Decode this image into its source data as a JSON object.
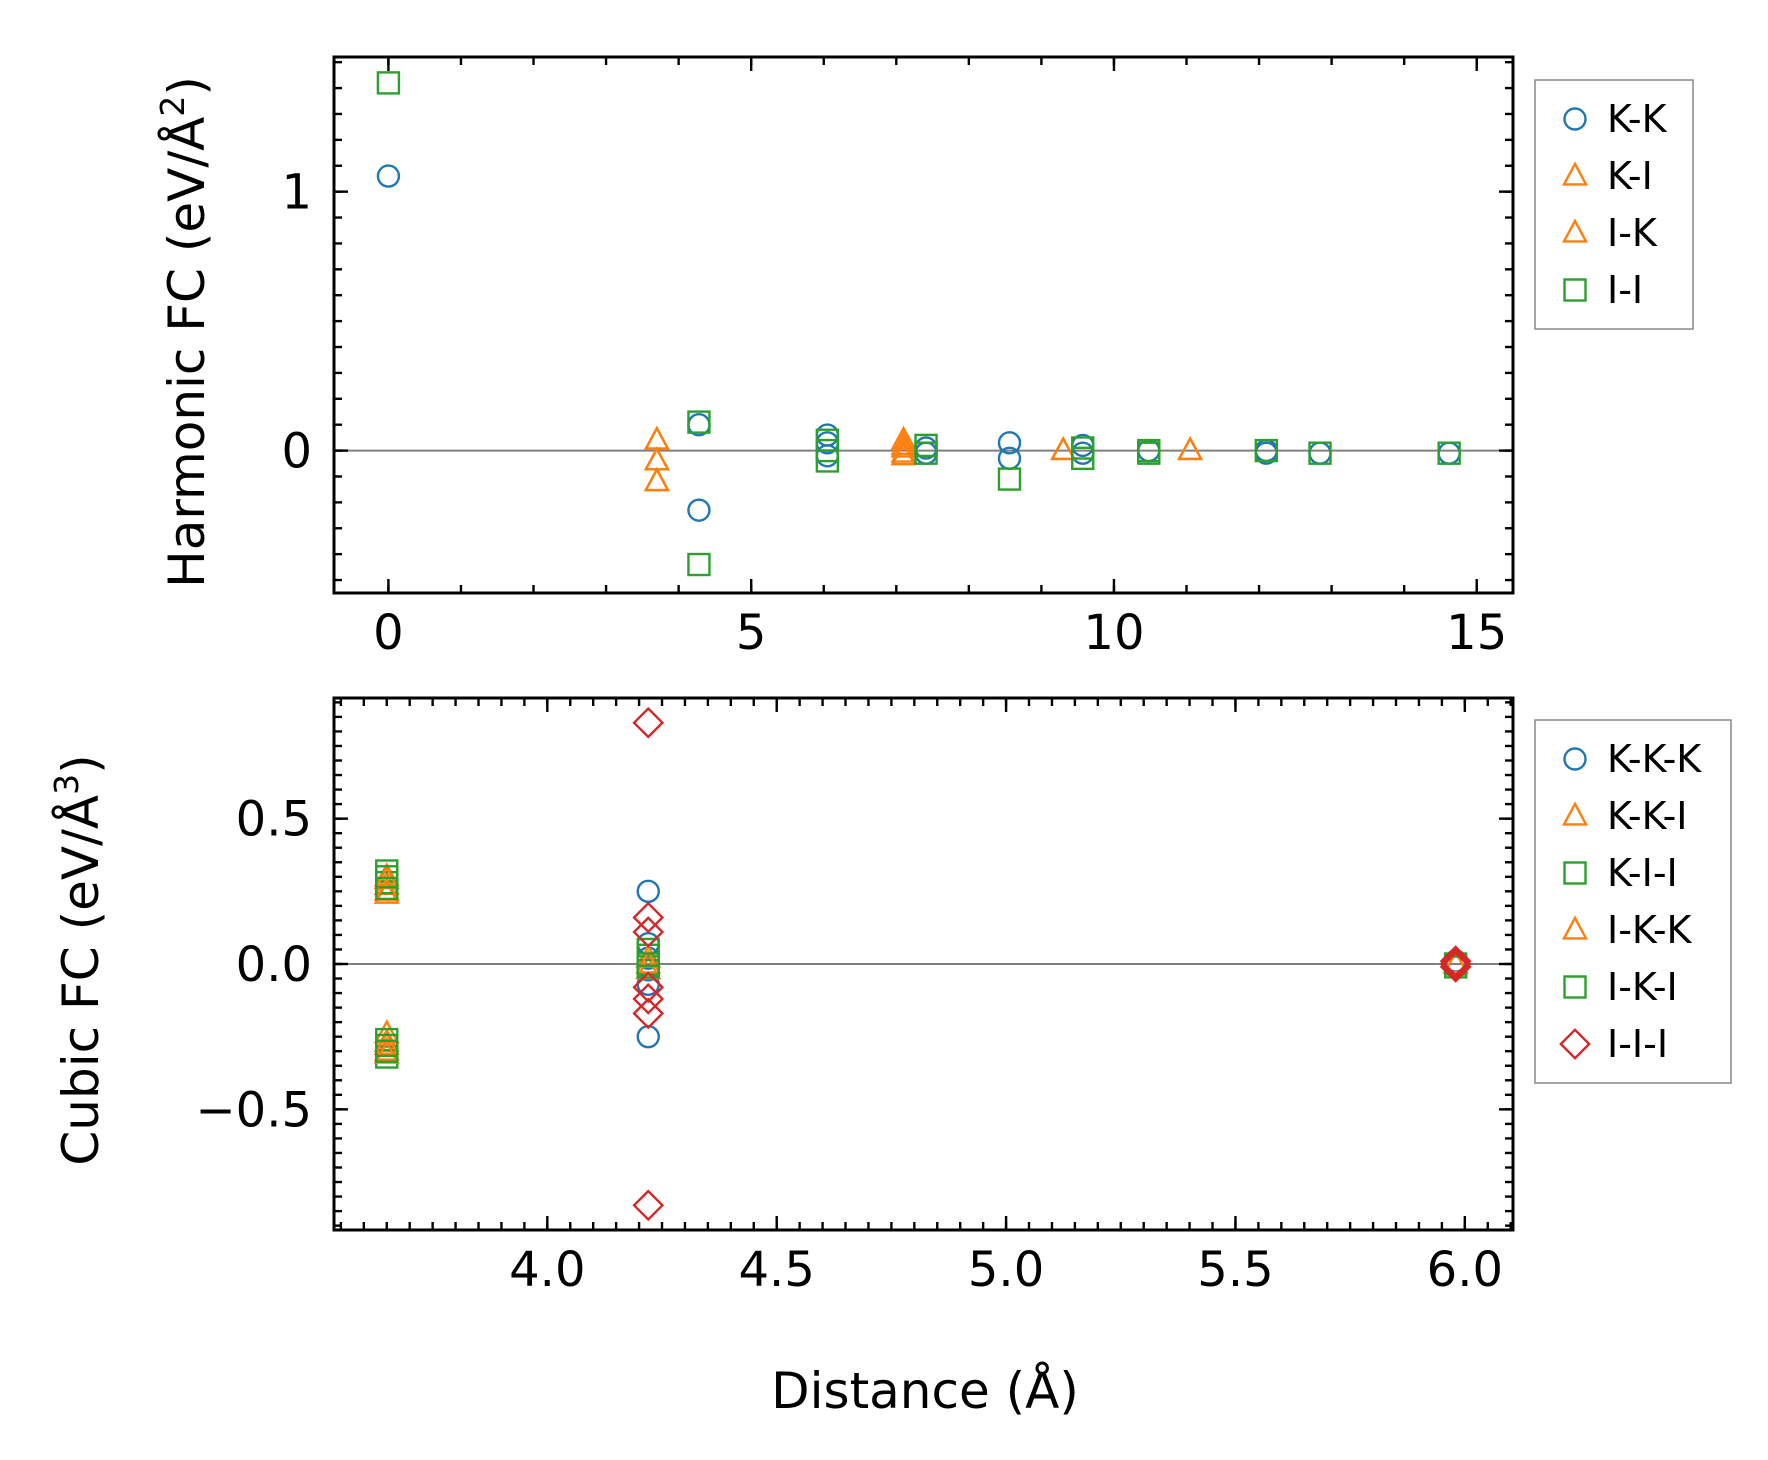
{
  "colors": {
    "blue": "#1f77b4",
    "orange": "#ff7f0e",
    "green": "#2ca02c",
    "red": "#d62728",
    "zero_line": "#808080"
  },
  "xlabel": "Distance (Å)",
  "chart_data": [
    {
      "type": "scatter",
      "title": "",
      "xlabel": "",
      "ylabel_main": "Harmonic FC (eV/Å",
      "ylabel_sup": "2",
      "ylabel_close": ")",
      "xlim": [
        -0.75,
        15.5
      ],
      "ylim": [
        -0.55,
        1.52
      ],
      "xticks": [
        0,
        5,
        10,
        15
      ],
      "xtick_labels": [
        "0",
        "5",
        "10",
        "15"
      ],
      "yticks": [
        0,
        1
      ],
      "ytick_labels": [
        "0",
        "1"
      ],
      "zero_line": true,
      "legend_loc": "upper right outside",
      "series": [
        {
          "name": "K-K",
          "marker": "circle",
          "color": "#1f77b4",
          "x": [
            0,
            4.28,
            4.28,
            6.05,
            6.05,
            6.05,
            7.41,
            7.41,
            8.56,
            8.56,
            9.57,
            9.57,
            10.48,
            12.1,
            12.1,
            12.84,
            14.62
          ],
          "y": [
            1.06,
            0.1,
            -0.23,
            0.06,
            0.03,
            -0.02,
            0.01,
            -0.01,
            0.03,
            -0.03,
            0.02,
            -0.01,
            0.0,
            0.0,
            -0.01,
            -0.01,
            -0.01
          ]
        },
        {
          "name": "K-I",
          "marker": "triangle",
          "color": "#ff7f0e",
          "x": [
            3.7,
            3.7,
            3.7,
            7.1,
            7.1,
            7.1,
            9.3,
            11.05
          ],
          "y": [
            0.04,
            -0.04,
            -0.12,
            0.04,
            0.01,
            -0.02,
            0.0,
            0.0
          ]
        },
        {
          "name": "I-K",
          "marker": "triangle",
          "color": "#ff7f0e",
          "x": [
            3.7,
            3.7,
            3.7,
            7.1,
            7.1,
            9.3,
            11.05
          ],
          "y": [
            0.04,
            -0.04,
            -0.12,
            0.02,
            -0.01,
            0.0,
            0.0
          ]
        },
        {
          "name": "I-I",
          "marker": "square",
          "color": "#2ca02c",
          "x": [
            0,
            4.28,
            4.28,
            6.05,
            6.05,
            6.05,
            7.41,
            7.41,
            8.56,
            9.57,
            9.57,
            10.48,
            10.48,
            12.1,
            12.84,
            14.62
          ],
          "y": [
            1.42,
            0.11,
            -0.44,
            0.04,
            0.0,
            -0.04,
            0.02,
            -0.01,
            -0.11,
            0.01,
            -0.03,
            0.0,
            -0.01,
            0.0,
            -0.01,
            -0.01
          ]
        }
      ]
    },
    {
      "type": "scatter",
      "title": "",
      "xlabel": "Distance (Å)",
      "ylabel_main": "Cubic FC (eV/Å",
      "ylabel_sup": "3",
      "ylabel_close": ")",
      "xlim": [
        3.535,
        6.105
      ],
      "ylim": [
        -0.915,
        0.915
      ],
      "xticks": [
        4.0,
        4.5,
        5.0,
        5.5,
        6.0
      ],
      "xtick_labels": [
        "4.0",
        "4.5",
        "5.0",
        "5.5",
        "6.0"
      ],
      "yticks": [
        -0.5,
        0.0,
        0.5
      ],
      "ytick_labels": [
        "−0.5",
        "0.0",
        "0.5"
      ],
      "zero_line": true,
      "legend_loc": "upper right outside",
      "series": [
        {
          "name": "K-K-K",
          "marker": "circle",
          "color": "#1f77b4",
          "x": [
            4.22,
            4.22,
            4.22,
            4.22,
            4.22,
            4.22,
            5.98,
            5.98
          ],
          "y": [
            0.25,
            0.07,
            0.02,
            -0.02,
            -0.07,
            -0.25,
            0.01,
            -0.01
          ]
        },
        {
          "name": "K-K-I",
          "marker": "triangle",
          "color": "#ff7f0e",
          "x": [
            3.65,
            3.65,
            3.65,
            3.65,
            3.65,
            3.65,
            4.22,
            4.22,
            5.98
          ],
          "y": [
            0.3,
            0.27,
            0.24,
            -0.24,
            -0.27,
            -0.3,
            0.02,
            -0.02,
            0.0
          ]
        },
        {
          "name": "K-I-I",
          "marker": "square",
          "color": "#2ca02c",
          "x": [
            3.65,
            3.65,
            3.65,
            3.65,
            4.22,
            4.22,
            5.98
          ],
          "y": [
            0.32,
            0.28,
            -0.26,
            -0.32,
            0.05,
            -0.01,
            0.0
          ]
        },
        {
          "name": "I-K-K",
          "marker": "triangle",
          "color": "#ff7f0e",
          "x": [
            3.65,
            3.65,
            3.65,
            3.65,
            4.22,
            5.98
          ],
          "y": [
            0.29,
            0.25,
            -0.28,
            -0.31,
            0.0,
            0.0
          ]
        },
        {
          "name": "I-K-I",
          "marker": "square",
          "color": "#2ca02c",
          "x": [
            3.65,
            3.65,
            3.65,
            3.65,
            4.22,
            4.22,
            5.98
          ],
          "y": [
            0.3,
            0.26,
            -0.28,
            -0.3,
            0.03,
            0.0,
            -0.01
          ]
        },
        {
          "name": "I-I-I",
          "marker": "diamond",
          "color": "#d62728",
          "x": [
            4.22,
            4.22,
            4.22,
            4.22,
            4.22,
            4.22,
            4.22,
            5.98,
            5.98,
            5.98
          ],
          "y": [
            0.83,
            0.16,
            0.11,
            -0.08,
            -0.12,
            -0.17,
            -0.83,
            0.01,
            0.0,
            -0.01
          ]
        }
      ]
    }
  ]
}
